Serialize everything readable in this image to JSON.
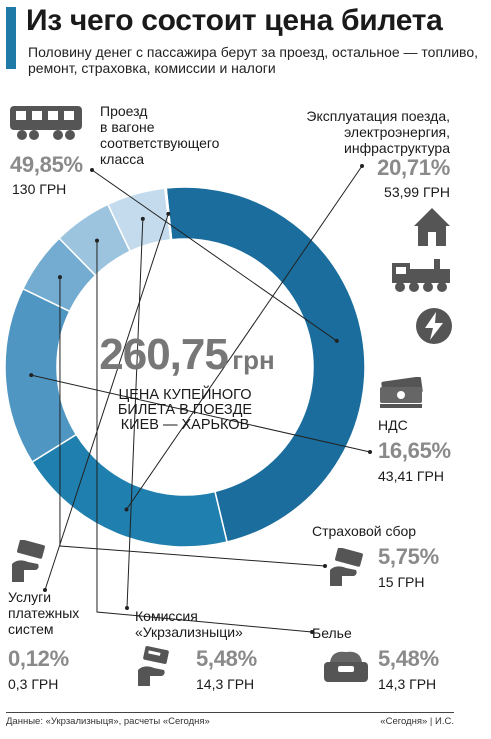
{
  "header": {
    "title": "Из чего состоит цена билета",
    "subtitle": "Половину денег с пассажира берут за проезд, остальное — топливо, ремонт, страховка, комиссии и налоги"
  },
  "center": {
    "value": "260,75",
    "unit": "грн",
    "caption_1": "ЦЕНА КУПЕЙНОГО",
    "caption_2": "БИЛЕТА В ПОЕЗДЕ",
    "caption_3": "КИЕВ — ХАРЬКОВ"
  },
  "footer": {
    "source": "Данные: «Укрзализныця», расчеты «Сегодня»",
    "credit": "«Сегодня» | И.С."
  },
  "labels": {
    "travel": [
      "Проезд",
      "в вагоне",
      "соответствующего",
      "класса"
    ],
    "operation": [
      "Эксплуатация поезда,",
      "электроэнергия,",
      "инфраструктура"
    ],
    "vat": [
      "НДС"
    ],
    "insurance": [
      "Страховой сбор"
    ],
    "linen": [
      "Белье"
    ],
    "commission": [
      "Комиссия",
      "«Укрзализныци»"
    ],
    "payment": [
      "Услуги",
      "платежных",
      "систем"
    ]
  },
  "colors": {
    "travel": "#1a6d9d",
    "operation": "#1f7fae",
    "vat": "#4f97c2",
    "insurance": "#73acd0",
    "linen": "#9cc4df",
    "commission": "#c3dbec",
    "payment": "#e4eef6",
    "icon": "#555555",
    "leader": "#222222"
  },
  "icons": [
    "train-car-icon",
    "house-icon",
    "locomotive-icon",
    "lightning-icon",
    "money-stack-icon",
    "hand-money-icon",
    "hand-card-icon",
    "linen-icon",
    "hand-money-icon"
  ],
  "chart_data": {
    "type": "pie",
    "variant": "donut",
    "title": "Из чего состоит цена билета",
    "total_label": "260,75 грн",
    "categories": [
      "Проезд в вагоне соответствующего класса",
      "Эксплуатация поезда, электроэнергия, инфраструктура",
      "НДС",
      "Страховой сбор",
      "Белье",
      "Комиссия «Укрзализныци»",
      "Услуги платежных систем"
    ],
    "values": [
      49.85,
      20.71,
      16.65,
      5.75,
      5.48,
      5.48,
      0.12
    ],
    "value_labels": [
      "49,85%",
      "20,71%",
      "16,65%",
      "5,75%",
      "5,48%",
      "5,48%",
      "0,12%"
    ],
    "amounts": [
      "130 ГРН",
      "53,99 ГРН",
      "43,41 ГРН",
      "15 ГРН",
      "14,3 ГРН",
      "14,3 ГРН",
      "0,3 ГРН"
    ],
    "start_angle_deg": -96,
    "direction": "clockwise"
  }
}
